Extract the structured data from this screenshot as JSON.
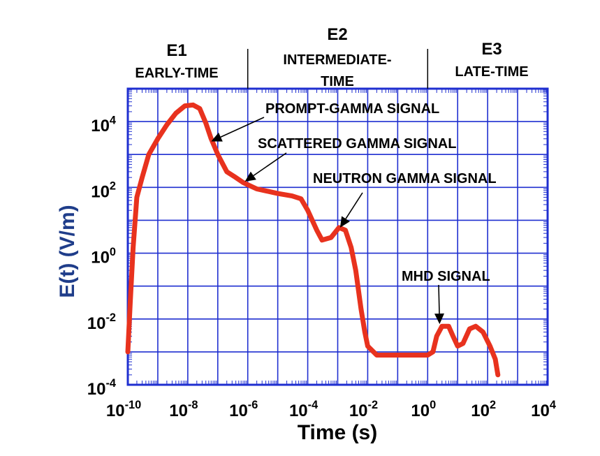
{
  "chart_data": {
    "type": "line",
    "title": "",
    "xlabel": "Time (s)",
    "ylabel": "E(t) (V/m)",
    "x_scale": "log",
    "y_scale": "log",
    "xlim": [
      1e-10,
      10000
    ],
    "ylim": [
      0.0001,
      100000
    ],
    "grid": true,
    "x_ticks": [
      {
        "value": 1e-10,
        "base": "10",
        "exp": "-10"
      },
      {
        "value": 1e-08,
        "base": "10",
        "exp": "-8"
      },
      {
        "value": 1e-06,
        "base": "10",
        "exp": "-6"
      },
      {
        "value": 0.0001,
        "base": "10",
        "exp": "-4"
      },
      {
        "value": 0.01,
        "base": "10",
        "exp": "-2"
      },
      {
        "value": 1,
        "base": "10",
        "exp": "0"
      },
      {
        "value": 100,
        "base": "10",
        "exp": "2"
      },
      {
        "value": 10000,
        "base": "10",
        "exp": "4"
      }
    ],
    "y_ticks": [
      {
        "value": 0.0001,
        "base": "10",
        "exp": "-4"
      },
      {
        "value": 0.01,
        "base": "10",
        "exp": "-2"
      },
      {
        "value": 1,
        "base": "10",
        "exp": "0"
      },
      {
        "value": 100,
        "base": "10",
        "exp": "2"
      },
      {
        "value": 10000,
        "base": "10",
        "exp": "4"
      }
    ],
    "series": [
      {
        "color": "#e8321e",
        "points": [
          [
            1e-10,
            0.001
          ],
          [
            1.2e-10,
            0.03
          ],
          [
            1.5e-10,
            1.5
          ],
          [
            2e-10,
            50
          ],
          [
            3e-10,
            200
          ],
          [
            5e-10,
            1000
          ],
          [
            1e-09,
            3000
          ],
          [
            2e-09,
            8000
          ],
          [
            4e-09,
            18000
          ],
          [
            8e-09,
            30000
          ],
          [
            1.5e-08,
            32000
          ],
          [
            2.5e-08,
            25000
          ],
          [
            4e-08,
            9000
          ],
          [
            6e-08,
            3000
          ],
          [
            1e-07,
            1000
          ],
          [
            2e-07,
            300
          ],
          [
            4e-07,
            200
          ],
          [
            7e-07,
            140
          ],
          [
            1e-06,
            120
          ],
          [
            2e-06,
            90
          ],
          [
            5e-06,
            75
          ],
          [
            1e-05,
            65
          ],
          [
            3e-05,
            55
          ],
          [
            6e-05,
            45
          ],
          [
            0.0001,
            20
          ],
          [
            0.0002,
            5
          ],
          [
            0.0003,
            2.5
          ],
          [
            0.0006,
            3
          ],
          [
            0.0011,
            6
          ],
          [
            0.0018,
            5
          ],
          [
            0.0028,
            1.5
          ],
          [
            0.004,
            0.3
          ],
          [
            0.006,
            0.02
          ],
          [
            0.008,
            0.004
          ],
          [
            0.01,
            0.0015
          ],
          [
            0.02,
            0.0008
          ],
          [
            0.05,
            0.0008
          ],
          [
            0.1,
            0.0008
          ],
          [
            1,
            0.0008
          ],
          [
            1.5,
            0.001
          ],
          [
            2,
            0.003
          ],
          [
            3,
            0.006
          ],
          [
            5,
            0.006
          ],
          [
            7,
            0.003
          ],
          [
            10,
            0.0015
          ],
          [
            15,
            0.0018
          ],
          [
            25,
            0.005
          ],
          [
            40,
            0.006
          ],
          [
            70,
            0.004
          ],
          [
            120,
            0.0015
          ],
          [
            180,
            0.0006
          ],
          [
            220,
            0.0002
          ]
        ]
      }
    ],
    "regions": [
      {
        "name": "E1",
        "label": "EARLY-TIME",
        "label_lines": [
          "EARLY-TIME"
        ]
      },
      {
        "name": "E2",
        "label": "INTERMEDIATE-TIME",
        "label_lines": [
          "INTERMEDIATE-",
          "TIME"
        ]
      },
      {
        "name": "E3",
        "label": "LATE-TIME",
        "label_lines": [
          "LATE-TIME"
        ]
      }
    ],
    "region_dividers": [
      1e-06,
      1
    ],
    "annotations": [
      {
        "text": "PROMPT-GAMMA SIGNAL",
        "target": [
          6e-08,
          2500
        ]
      },
      {
        "text": "SCATTERED GAMMA SIGNAL",
        "target": [
          8e-07,
          150
        ]
      },
      {
        "text": "NEUTRON GAMMA SIGNAL",
        "target": [
          0.0012,
          6
        ]
      },
      {
        "text": "MHD SIGNAL",
        "target": [
          2.5,
          0.007
        ]
      }
    ],
    "colors": {
      "grid": "#1f2fd0",
      "axis_label": "#1f3d8a",
      "text": "#000000"
    }
  }
}
